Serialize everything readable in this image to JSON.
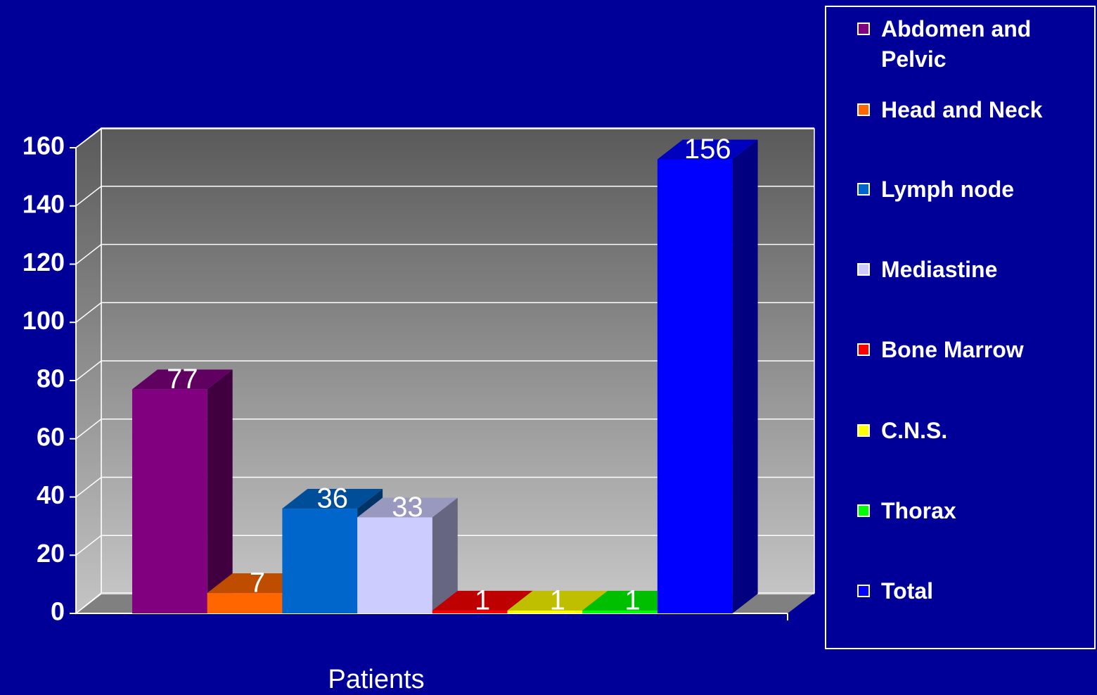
{
  "chart_data": {
    "type": "bar",
    "categories": [
      "Patients"
    ],
    "series": [
      {
        "name": "Abdomen and Pelvic",
        "color": "#800080",
        "values": [
          77
        ]
      },
      {
        "name": "Head and Neck",
        "color": "#ff6600",
        "values": [
          7
        ]
      },
      {
        "name": "Lymph node",
        "color": "#0066cc",
        "values": [
          36
        ]
      },
      {
        "name": "Mediastine",
        "color": "#ccccff",
        "values": [
          33
        ]
      },
      {
        "name": "Bone Marrow",
        "color": "#ff0000",
        "values": [
          1
        ]
      },
      {
        "name": "C.N.S.",
        "color": "#ffff00",
        "values": [
          1
        ]
      },
      {
        "name": "Thorax",
        "color": "#00ff00",
        "values": [
          1
        ]
      },
      {
        "name": "Total",
        "color": "#0000ff",
        "values": [
          156
        ]
      }
    ],
    "ylim": [
      0,
      160
    ],
    "yticks": [
      0,
      20,
      40,
      60,
      80,
      100,
      120,
      140,
      160
    ],
    "grid": true,
    "legend": "right"
  }
}
